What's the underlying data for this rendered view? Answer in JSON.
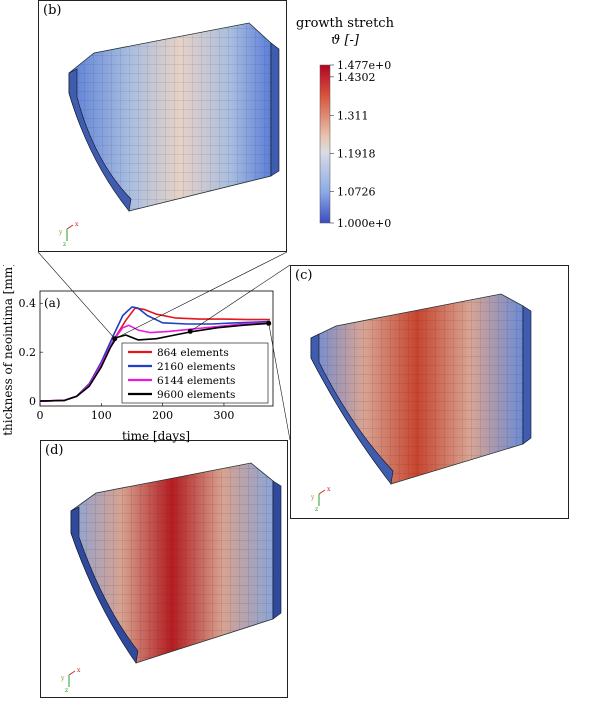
{
  "colorbar": {
    "title_line1": "growth stretch",
    "title_line2": "ϑ [-]",
    "ticks": [
      "1.477e+0",
      "1.4302",
      "1.311",
      "1.1918",
      "1.0726",
      "1.000e+0"
    ],
    "colors": [
      "#b40426",
      "#e8765d",
      "#e7d4c8",
      "#b3c9e9",
      "#7b9ff0",
      "#3b4cc0"
    ]
  },
  "panels": {
    "b": {
      "label": "(b)"
    },
    "c": {
      "label": "(c)"
    },
    "d": {
      "label": "(d)"
    }
  },
  "triad": {
    "x": "x",
    "y": "y",
    "z": "z"
  },
  "chart_data": {
    "type": "line",
    "label": "(a)",
    "xlabel": "time [days]",
    "ylabel": "thickness of neointima [mm]",
    "xlim": [
      0,
      380
    ],
    "ylim": [
      -0.02,
      0.45
    ],
    "xticks": [
      0,
      100,
      200,
      300
    ],
    "yticks": [
      0,
      0.2,
      0.4
    ],
    "legend_position": "lower-right",
    "series": [
      {
        "name": "864 elements",
        "color": "#e8151b",
        "x": [
          0,
          40,
          60,
          80,
          100,
          120,
          140,
          155,
          170,
          190,
          220,
          260,
          300,
          340,
          375
        ],
        "y": [
          0,
          0.003,
          0.02,
          0.07,
          0.15,
          0.25,
          0.33,
          0.38,
          0.375,
          0.355,
          0.34,
          0.335,
          0.335,
          0.333,
          0.333
        ]
      },
      {
        "name": "2160 elements",
        "color": "#1f3fc4",
        "x": [
          0,
          40,
          60,
          80,
          100,
          120,
          135,
          150,
          160,
          175,
          200,
          240,
          280,
          320,
          375
        ],
        "y": [
          0,
          0.003,
          0.02,
          0.07,
          0.16,
          0.27,
          0.35,
          0.385,
          0.38,
          0.35,
          0.32,
          0.315,
          0.315,
          0.32,
          0.325
        ]
      },
      {
        "name": "6144 elements",
        "color": "#e81adf",
        "x": [
          0,
          40,
          60,
          80,
          100,
          120,
          135,
          145,
          160,
          180,
          210,
          250,
          290,
          330,
          375
        ],
        "y": [
          0,
          0.003,
          0.02,
          0.065,
          0.15,
          0.25,
          0.3,
          0.31,
          0.29,
          0.28,
          0.285,
          0.295,
          0.305,
          0.315,
          0.32
        ]
      },
      {
        "name": "9600 elements",
        "color": "#000000",
        "x": [
          0,
          40,
          60,
          80,
          100,
          115,
          125,
          140,
          160,
          190,
          220,
          250,
          290,
          330,
          375
        ],
        "y": [
          0,
          0.003,
          0.02,
          0.06,
          0.14,
          0.22,
          0.26,
          0.27,
          0.25,
          0.255,
          0.27,
          0.285,
          0.3,
          0.31,
          0.318
        ]
      }
    ],
    "markers": [
      {
        "x": 122,
        "y": 0.255,
        "panel": "b"
      },
      {
        "x": 245,
        "y": 0.285,
        "panel": "c"
      },
      {
        "x": 373,
        "y": 0.318,
        "panel": "d"
      }
    ]
  }
}
